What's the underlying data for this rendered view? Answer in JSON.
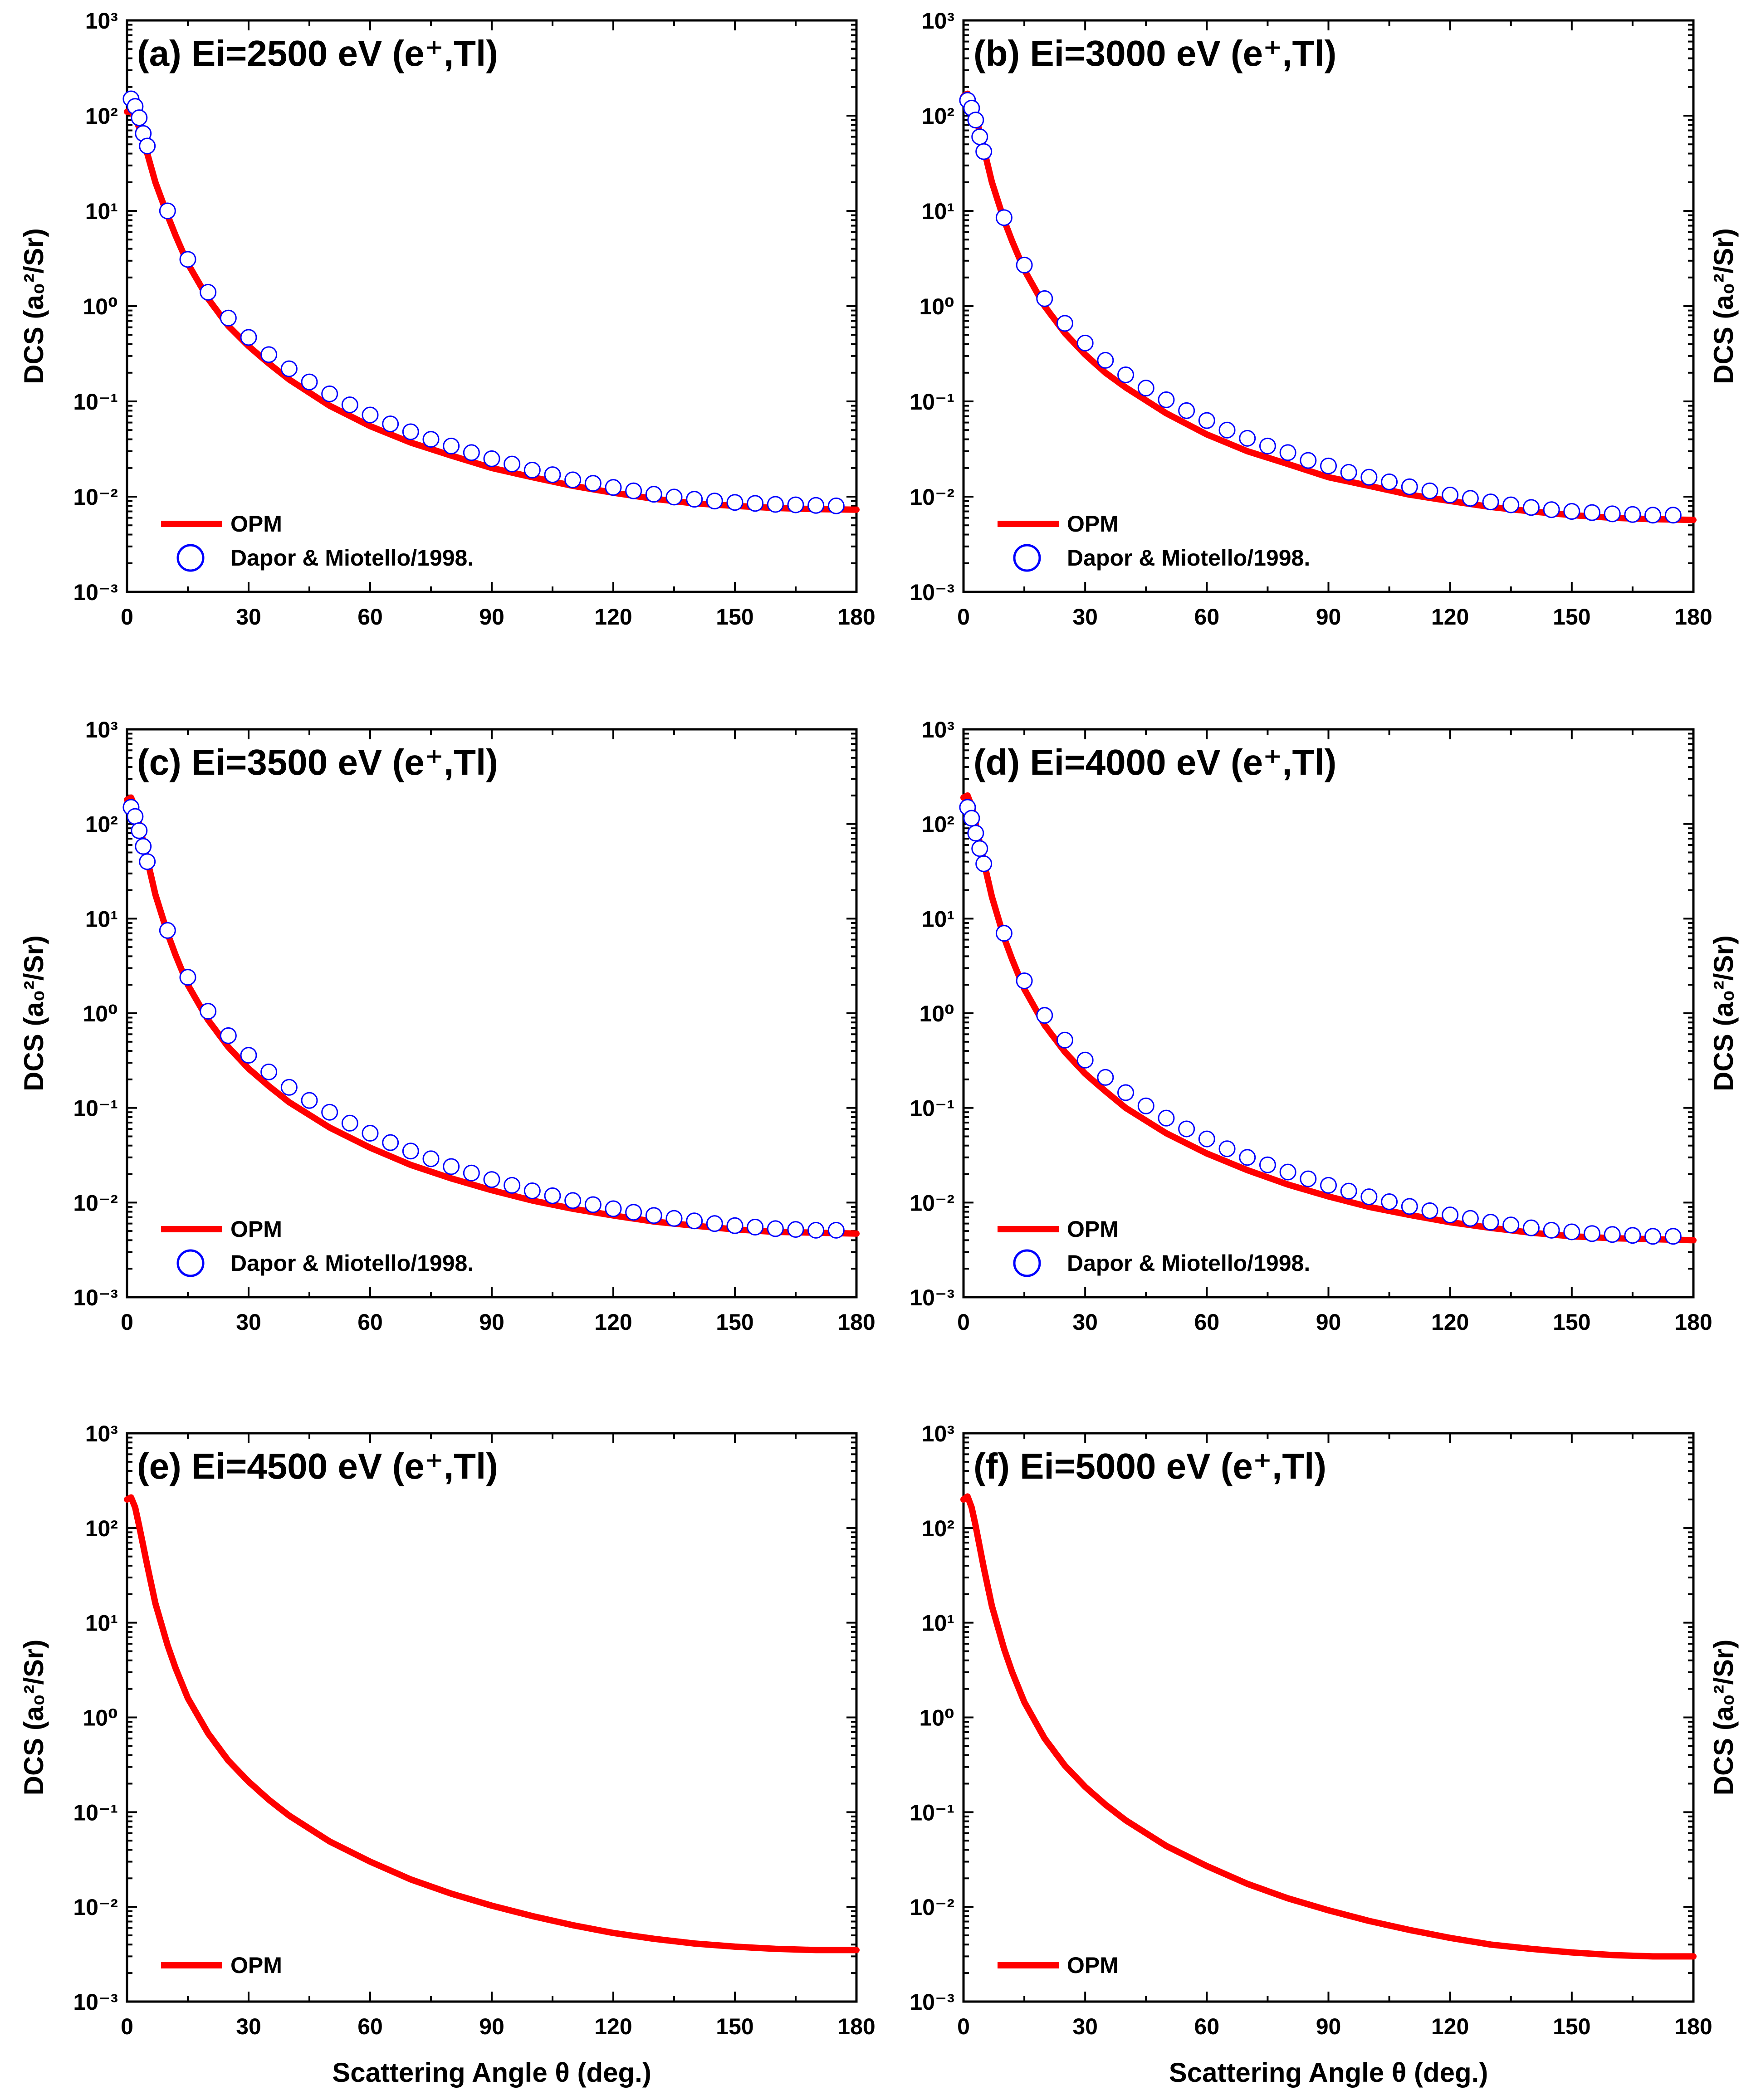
{
  "figure": {
    "xlabel": "Scattering Angle θ (deg.)",
    "ylabel": "DCS (a₀²/Sr)"
  },
  "chart_data": [
    {
      "type": "line",
      "panel": "a",
      "title": "(a) Ei=2500 eV (e⁺,Tl)",
      "xlabel": "",
      "ylabel": "DCS (a₀²/Sr)",
      "xlim": [
        0,
        180
      ],
      "ylim": [
        0.001,
        1000
      ],
      "yscale": "log",
      "xticks": [
        "0",
        "30",
        "60",
        "90",
        "120",
        "150",
        "180"
      ],
      "yticks": [
        "10⁻³",
        "10⁻²",
        "10⁻¹",
        "10⁰",
        "10¹",
        "10²",
        "10³"
      ],
      "legend": [
        "OPM",
        "Dapor & Miotello/1998."
      ],
      "legend_position": "bottom-left",
      "series": [
        {
          "name": "OPM",
          "style": "line",
          "color": "#ff0000",
          "x": [
            0,
            1,
            2,
            3,
            5,
            7,
            10,
            12,
            15,
            20,
            25,
            30,
            35,
            40,
            50,
            60,
            70,
            80,
            90,
            100,
            110,
            120,
            130,
            140,
            150,
            160,
            170,
            180
          ],
          "y": [
            110,
            110,
            95,
            75,
            40,
            20,
            9,
            5.5,
            2.8,
            1.2,
            0.62,
            0.38,
            0.25,
            0.17,
            0.09,
            0.055,
            0.037,
            0.027,
            0.02,
            0.016,
            0.013,
            0.011,
            0.0095,
            0.0085,
            0.008,
            0.0076,
            0.0074,
            0.0073
          ]
        },
        {
          "name": "Dapor & Miotello/1998.",
          "style": "markers",
          "color": "#0000ff",
          "x": [
            1,
            2,
            3,
            4,
            5,
            10,
            15,
            20,
            25,
            30,
            35,
            40,
            45,
            50,
            55,
            60,
            65,
            70,
            75,
            80,
            85,
            90,
            95,
            100,
            105,
            110,
            115,
            120,
            125,
            130,
            135,
            140,
            145,
            150,
            155,
            160,
            165,
            170,
            175
          ],
          "y": [
            150,
            125,
            95,
            65,
            48,
            10,
            3.1,
            1.4,
            0.75,
            0.47,
            0.31,
            0.22,
            0.16,
            0.12,
            0.092,
            0.072,
            0.058,
            0.048,
            0.04,
            0.034,
            0.029,
            0.025,
            0.022,
            0.019,
            0.017,
            0.015,
            0.0138,
            0.0125,
            0.0115,
            0.0106,
            0.0099,
            0.0094,
            0.009,
            0.0087,
            0.0085,
            0.0083,
            0.0082,
            0.0081,
            0.008
          ]
        }
      ]
    },
    {
      "type": "line",
      "panel": "b",
      "title": "(b) Ei=3000 eV (e⁺,Tl)",
      "xlabel": "",
      "ylabel": "DCS (a₀²/Sr)",
      "xlim": [
        0,
        180
      ],
      "ylim": [
        0.001,
        1000
      ],
      "yscale": "log",
      "xticks": [
        "0",
        "30",
        "60",
        "90",
        "120",
        "150",
        "180"
      ],
      "yticks": [
        "10⁻³",
        "10⁻²",
        "10⁻¹",
        "10⁰",
        "10¹",
        "10²",
        "10³"
      ],
      "legend": [
        "OPM",
        "Dapor & Miotello/1998."
      ],
      "legend_position": "bottom-left",
      "series": [
        {
          "name": "OPM",
          "style": "line",
          "color": "#ff0000",
          "x": [
            0,
            1,
            2,
            3,
            5,
            7,
            10,
            12,
            15,
            20,
            25,
            30,
            35,
            40,
            50,
            60,
            70,
            80,
            90,
            100,
            110,
            120,
            130,
            140,
            150,
            160,
            170,
            180
          ],
          "y": [
            160,
            170,
            140,
            100,
            45,
            20,
            8,
            4.8,
            2.4,
            1.0,
            0.52,
            0.31,
            0.2,
            0.14,
            0.075,
            0.045,
            0.03,
            0.022,
            0.016,
            0.013,
            0.0105,
            0.009,
            0.0078,
            0.007,
            0.0064,
            0.006,
            0.0058,
            0.0057
          ]
        },
        {
          "name": "Dapor & Miotello/1998.",
          "style": "markers",
          "color": "#0000ff",
          "x": [
            1,
            2,
            3,
            4,
            5,
            10,
            15,
            20,
            25,
            30,
            35,
            40,
            45,
            50,
            55,
            60,
            65,
            70,
            75,
            80,
            85,
            90,
            95,
            100,
            105,
            110,
            115,
            120,
            125,
            130,
            135,
            140,
            145,
            150,
            155,
            160,
            165,
            170,
            175
          ],
          "y": [
            145,
            120,
            90,
            60,
            42,
            8.5,
            2.7,
            1.2,
            0.66,
            0.41,
            0.27,
            0.19,
            0.138,
            0.104,
            0.08,
            0.063,
            0.05,
            0.041,
            0.034,
            0.029,
            0.024,
            0.021,
            0.018,
            0.016,
            0.0143,
            0.0127,
            0.0115,
            0.0104,
            0.0096,
            0.0088,
            0.0082,
            0.0077,
            0.0073,
            0.007,
            0.0068,
            0.0066,
            0.0065,
            0.0064,
            0.0064
          ]
        }
      ]
    },
    {
      "type": "line",
      "panel": "c",
      "title": "(c) Ei=3500 eV (e⁺,Tl)",
      "xlabel": "",
      "ylabel": "DCS (a₀²/Sr)",
      "xlim": [
        0,
        180
      ],
      "ylim": [
        0.001,
        1000
      ],
      "yscale": "log",
      "xticks": [
        "0",
        "30",
        "60",
        "90",
        "120",
        "150",
        "180"
      ],
      "yticks": [
        "10⁻³",
        "10⁻²",
        "10⁻¹",
        "10⁰",
        "10¹",
        "10²",
        "10³"
      ],
      "legend": [
        "OPM",
        "Dapor & Miotello/1998."
      ],
      "legend_position": "bottom-left",
      "series": [
        {
          "name": "OPM",
          "style": "line",
          "color": "#ff0000",
          "x": [
            0,
            1,
            2,
            3,
            5,
            7,
            10,
            12,
            15,
            20,
            25,
            30,
            35,
            40,
            50,
            60,
            70,
            80,
            90,
            100,
            110,
            120,
            130,
            140,
            150,
            160,
            170,
            180
          ],
          "y": [
            180,
            190,
            150,
            100,
            42,
            18,
            7,
            4.1,
            2.0,
            0.85,
            0.44,
            0.26,
            0.17,
            0.115,
            0.062,
            0.038,
            0.025,
            0.018,
            0.0135,
            0.0105,
            0.0086,
            0.0073,
            0.0063,
            0.0057,
            0.0052,
            0.0049,
            0.0048,
            0.0047
          ]
        },
        {
          "name": "Dapor & Miotello/1998.",
          "style": "markers",
          "color": "#0000ff",
          "x": [
            1,
            2,
            3,
            4,
            5,
            10,
            15,
            20,
            25,
            30,
            35,
            40,
            45,
            50,
            55,
            60,
            65,
            70,
            75,
            80,
            85,
            90,
            95,
            100,
            105,
            110,
            115,
            120,
            125,
            130,
            135,
            140,
            145,
            150,
            155,
            160,
            165,
            170,
            175
          ],
          "y": [
            150,
            120,
            85,
            58,
            40,
            7.5,
            2.4,
            1.05,
            0.58,
            0.36,
            0.24,
            0.165,
            0.12,
            0.09,
            0.069,
            0.054,
            0.043,
            0.035,
            0.029,
            0.024,
            0.0205,
            0.0175,
            0.0152,
            0.0133,
            0.0118,
            0.0105,
            0.0095,
            0.0086,
            0.0079,
            0.0073,
            0.0068,
            0.0064,
            0.006,
            0.0057,
            0.0055,
            0.0053,
            0.0052,
            0.0051,
            0.0051
          ]
        }
      ]
    },
    {
      "type": "line",
      "panel": "d",
      "title": "(d) Ei=4000 eV (e⁺,Tl)",
      "xlabel": "",
      "ylabel": "DCS (a₀²/Sr)",
      "xlim": [
        0,
        180
      ],
      "ylim": [
        0.001,
        1000
      ],
      "yscale": "log",
      "xticks": [
        "0",
        "30",
        "60",
        "90",
        "120",
        "150",
        "180"
      ],
      "yticks": [
        "10⁻³",
        "10⁻²",
        "10⁻¹",
        "10⁰",
        "10¹",
        "10²",
        "10³"
      ],
      "legend": [
        "OPM",
        "Dapor & Miotello/1998."
      ],
      "legend_position": "bottom-left",
      "series": [
        {
          "name": "OPM",
          "style": "line",
          "color": "#ff0000",
          "x": [
            0,
            1,
            2,
            3,
            5,
            7,
            10,
            12,
            15,
            20,
            25,
            30,
            35,
            40,
            50,
            60,
            70,
            80,
            90,
            100,
            110,
            120,
            130,
            140,
            150,
            160,
            170,
            180
          ],
          "y": [
            190,
            200,
            155,
            100,
            40,
            17,
            6.3,
            3.7,
            1.8,
            0.75,
            0.39,
            0.23,
            0.15,
            0.1,
            0.054,
            0.033,
            0.022,
            0.0155,
            0.0116,
            0.009,
            0.0074,
            0.0062,
            0.0054,
            0.0048,
            0.0044,
            0.0042,
            0.0041,
            0.004
          ]
        },
        {
          "name": "Dapor & Miotello/1998.",
          "style": "markers",
          "color": "#0000ff",
          "x": [
            1,
            2,
            3,
            4,
            5,
            10,
            15,
            20,
            25,
            30,
            35,
            40,
            45,
            50,
            55,
            60,
            65,
            70,
            75,
            80,
            85,
            90,
            95,
            100,
            105,
            110,
            115,
            120,
            125,
            130,
            135,
            140,
            145,
            150,
            155,
            160,
            165,
            170,
            175
          ],
          "y": [
            150,
            115,
            80,
            55,
            38,
            7,
            2.2,
            0.95,
            0.52,
            0.32,
            0.21,
            0.145,
            0.105,
            0.078,
            0.06,
            0.047,
            0.037,
            0.03,
            0.025,
            0.021,
            0.0178,
            0.0152,
            0.0132,
            0.0115,
            0.0102,
            0.0091,
            0.0082,
            0.0074,
            0.0068,
            0.0062,
            0.0058,
            0.0054,
            0.0051,
            0.0049,
            0.0047,
            0.0046,
            0.0045,
            0.0044,
            0.0044
          ]
        }
      ]
    },
    {
      "type": "line",
      "panel": "e",
      "title": "(e) Ei=4500 eV (e⁺,Tl)",
      "xlabel": "Scattering Angle θ (deg.)",
      "ylabel": "DCS (a₀²/Sr)",
      "xlim": [
        0,
        180
      ],
      "ylim": [
        0.001,
        1000
      ],
      "yscale": "log",
      "xticks": [
        "0",
        "30",
        "60",
        "90",
        "120",
        "150",
        "180"
      ],
      "yticks": [
        "10⁻³",
        "10⁻²",
        "10⁻¹",
        "10⁰",
        "10¹",
        "10²",
        "10³"
      ],
      "legend": [
        "OPM"
      ],
      "legend_position": "bottom-left",
      "series": [
        {
          "name": "OPM",
          "style": "line",
          "color": "#ff0000",
          "x": [
            0,
            1,
            2,
            3,
            5,
            7,
            10,
            12,
            15,
            20,
            25,
            30,
            35,
            40,
            50,
            60,
            70,
            80,
            90,
            100,
            110,
            120,
            130,
            140,
            150,
            160,
            170,
            180
          ],
          "y": [
            200,
            210,
            165,
            105,
            40,
            16,
            5.8,
            3.3,
            1.6,
            0.68,
            0.35,
            0.21,
            0.135,
            0.092,
            0.049,
            0.03,
            0.0195,
            0.0138,
            0.0103,
            0.008,
            0.0064,
            0.0053,
            0.0046,
            0.0041,
            0.0038,
            0.0036,
            0.0035,
            0.0035
          ]
        }
      ]
    },
    {
      "type": "line",
      "panel": "f",
      "title": "(f) Ei=5000 eV (e⁺,Tl)",
      "xlabel": "Scattering Angle θ (deg.)",
      "ylabel": "DCS (a₀²/Sr)",
      "xlim": [
        0,
        180
      ],
      "ylim": [
        0.001,
        1000
      ],
      "yscale": "log",
      "xticks": [
        "0",
        "30",
        "60",
        "90",
        "120",
        "150",
        "180"
      ],
      "yticks": [
        "10⁻³",
        "10⁻²",
        "10⁻¹",
        "10⁰",
        "10¹",
        "10²",
        "10³"
      ],
      "legend": [
        "OPM"
      ],
      "legend_position": "bottom-left",
      "series": [
        {
          "name": "OPM",
          "style": "line",
          "color": "#ff0000",
          "x": [
            0,
            1,
            2,
            3,
            5,
            7,
            10,
            12,
            15,
            20,
            25,
            30,
            35,
            40,
            50,
            60,
            70,
            80,
            90,
            100,
            110,
            120,
            130,
            140,
            150,
            160,
            170,
            180
          ],
          "y": [
            200,
            215,
            165,
            105,
            38,
            15,
            5.3,
            3.0,
            1.45,
            0.6,
            0.31,
            0.185,
            0.12,
            0.082,
            0.044,
            0.027,
            0.0175,
            0.0123,
            0.0092,
            0.0071,
            0.0057,
            0.0047,
            0.004,
            0.0036,
            0.0033,
            0.0031,
            0.003,
            0.003
          ]
        }
      ]
    }
  ]
}
